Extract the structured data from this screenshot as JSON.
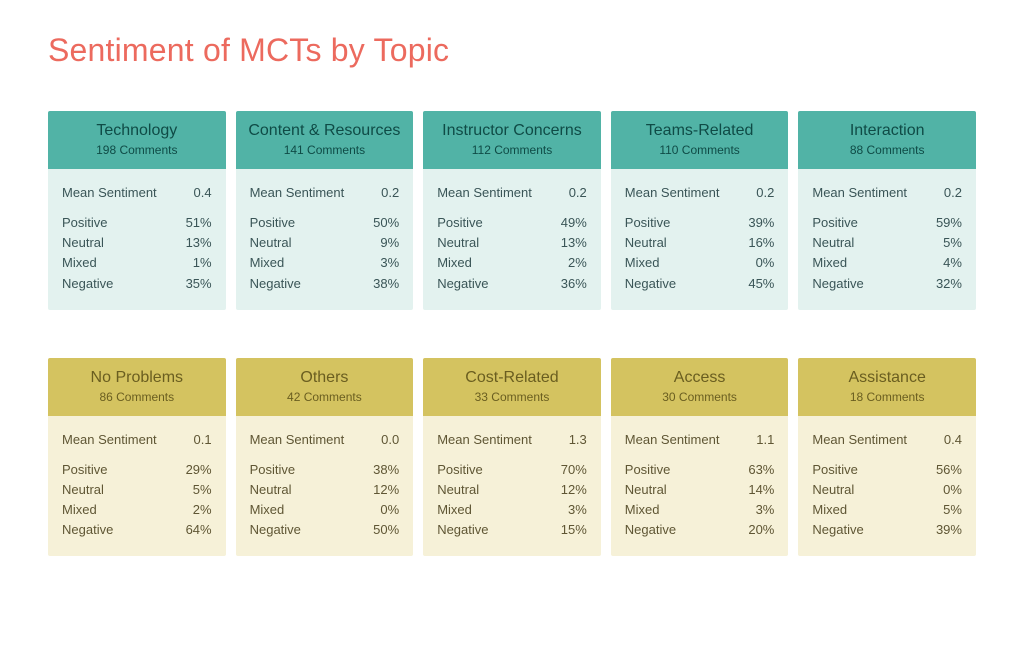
{
  "page": {
    "title": "Sentiment of MCTs by Topic",
    "title_color": "#ec6a5e",
    "background": "#ffffff"
  },
  "labels": {
    "mean_sentiment": "Mean Sentiment",
    "positive": "Positive",
    "neutral": "Neutral",
    "mixed": "Mixed",
    "negative": "Negative",
    "comments_suffix": " Comments"
  },
  "groups": [
    {
      "header_bg": "#51b3a6",
      "header_text": "#0f4b46",
      "body_bg": "#e3f2ef",
      "body_text": "#3a5557",
      "cards": [
        {
          "title": "Technology",
          "comments": "198",
          "mean": "0.4",
          "positive": "51%",
          "neutral": "13%",
          "mixed": "1%",
          "negative": "35%"
        },
        {
          "title": "Content & Resources",
          "comments": "141",
          "mean": "0.2",
          "positive": "50%",
          "neutral": "9%",
          "mixed": "3%",
          "negative": "38%"
        },
        {
          "title": "Instructor Concerns",
          "comments": "112",
          "mean": "0.2",
          "positive": "49%",
          "neutral": "13%",
          "mixed": "2%",
          "negative": "36%"
        },
        {
          "title": "Teams-Related",
          "comments": "110",
          "mean": "0.2",
          "positive": "39%",
          "neutral": "16%",
          "mixed": "0%",
          "negative": "45%"
        },
        {
          "title": "Interaction",
          "comments": "88",
          "mean": "0.2",
          "positive": "59%",
          "neutral": "5%",
          "mixed": "4%",
          "negative": "32%"
        }
      ]
    },
    {
      "header_bg": "#d4c360",
      "header_text": "#6a5e20",
      "body_bg": "#f6f1d8",
      "body_text": "#5f5634",
      "cards": [
        {
          "title": "No Problems",
          "comments": "86",
          "mean": "0.1",
          "positive": "29%",
          "neutral": "5%",
          "mixed": "2%",
          "negative": "64%"
        },
        {
          "title": "Others",
          "comments": "42",
          "mean": "0.0",
          "positive": "38%",
          "neutral": "12%",
          "mixed": "0%",
          "negative": "50%"
        },
        {
          "title": "Cost-Related",
          "comments": "33",
          "mean": "1.3",
          "positive": "70%",
          "neutral": "12%",
          "mixed": "3%",
          "negative": "15%"
        },
        {
          "title": "Access",
          "comments": "30",
          "mean": "1.1",
          "positive": "63%",
          "neutral": "14%",
          "mixed": "3%",
          "negative": "20%"
        },
        {
          "title": "Assistance",
          "comments": "18",
          "mean": "0.4",
          "positive": "56%",
          "neutral": "0%",
          "mixed": "5%",
          "negative": "39%"
        }
      ]
    }
  ]
}
